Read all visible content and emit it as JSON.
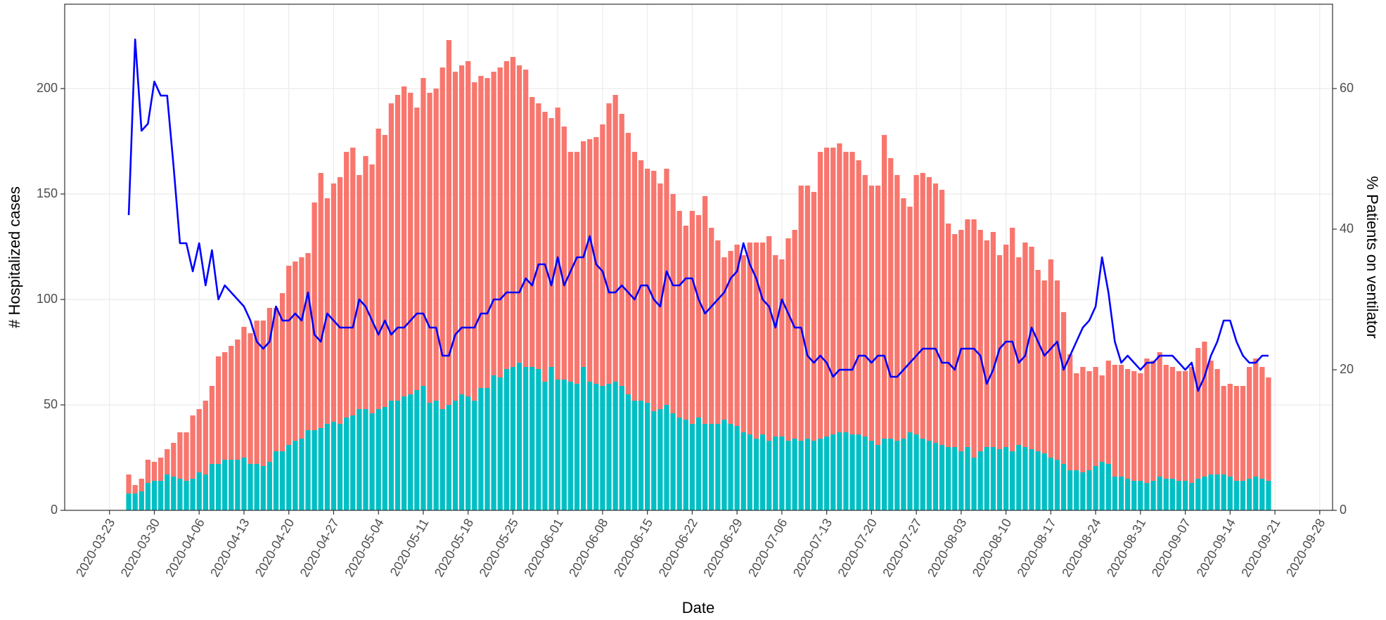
{
  "chart_data": {
    "type": "bar",
    "xlabel": "Date",
    "ylabel": "# Hospitalized cases",
    "y2label": "% Patients on ventilator",
    "x": [
      "2020-03-26",
      "2020-03-27",
      "2020-03-28",
      "2020-03-29",
      "2020-03-30",
      "2020-03-31",
      "2020-04-01",
      "2020-04-02",
      "2020-04-03",
      "2020-04-04",
      "2020-04-05",
      "2020-04-06",
      "2020-04-07",
      "2020-04-08",
      "2020-04-09",
      "2020-04-10",
      "2020-04-11",
      "2020-04-12",
      "2020-04-13",
      "2020-04-14",
      "2020-04-15",
      "2020-04-16",
      "2020-04-17",
      "2020-04-18",
      "2020-04-19",
      "2020-04-20",
      "2020-04-21",
      "2020-04-22",
      "2020-04-23",
      "2020-04-24",
      "2020-04-25",
      "2020-04-26",
      "2020-04-27",
      "2020-04-28",
      "2020-04-29",
      "2020-04-30",
      "2020-05-01",
      "2020-05-02",
      "2020-05-03",
      "2020-05-04",
      "2020-05-05",
      "2020-05-06",
      "2020-05-07",
      "2020-05-08",
      "2020-05-09",
      "2020-05-10",
      "2020-05-11",
      "2020-05-12",
      "2020-05-13",
      "2020-05-14",
      "2020-05-15",
      "2020-05-16",
      "2020-05-17",
      "2020-05-18",
      "2020-05-19",
      "2020-05-20",
      "2020-05-21",
      "2020-05-22",
      "2020-05-23",
      "2020-05-24",
      "2020-05-25",
      "2020-05-26",
      "2020-05-27",
      "2020-05-28",
      "2020-05-29",
      "2020-05-30",
      "2020-05-31",
      "2020-06-01",
      "2020-06-02",
      "2020-06-03",
      "2020-06-04",
      "2020-06-05",
      "2020-06-06",
      "2020-06-07",
      "2020-06-08",
      "2020-06-09",
      "2020-06-10",
      "2020-06-11",
      "2020-06-12",
      "2020-06-13",
      "2020-06-14",
      "2020-06-15",
      "2020-06-16",
      "2020-06-17",
      "2020-06-18",
      "2020-06-19",
      "2020-06-20",
      "2020-06-21",
      "2020-06-22",
      "2020-06-23",
      "2020-06-24",
      "2020-06-25",
      "2020-06-26",
      "2020-06-27",
      "2020-06-28",
      "2020-06-29",
      "2020-06-30",
      "2020-07-01",
      "2020-07-02",
      "2020-07-03",
      "2020-07-04",
      "2020-07-05",
      "2020-07-06",
      "2020-07-07",
      "2020-07-08",
      "2020-07-09",
      "2020-07-10",
      "2020-07-11",
      "2020-07-12",
      "2020-07-13",
      "2020-07-14",
      "2020-07-15",
      "2020-07-16",
      "2020-07-17",
      "2020-07-18",
      "2020-07-19",
      "2020-07-20",
      "2020-07-21",
      "2020-07-22",
      "2020-07-23",
      "2020-07-24",
      "2020-07-25",
      "2020-07-26",
      "2020-07-27",
      "2020-07-28",
      "2020-07-29",
      "2020-07-30",
      "2020-07-31",
      "2020-08-01",
      "2020-08-02",
      "2020-08-03",
      "2020-08-04",
      "2020-08-05",
      "2020-08-06",
      "2020-08-07",
      "2020-08-08",
      "2020-08-09",
      "2020-08-10",
      "2020-08-11",
      "2020-08-12",
      "2020-08-13",
      "2020-08-14",
      "2020-08-15",
      "2020-08-16",
      "2020-08-17",
      "2020-08-18",
      "2020-08-19",
      "2020-08-20",
      "2020-08-21",
      "2020-08-22",
      "2020-08-23",
      "2020-08-24",
      "2020-08-25",
      "2020-08-26",
      "2020-08-27",
      "2020-08-28",
      "2020-08-29",
      "2020-08-30",
      "2020-08-31",
      "2020-09-01",
      "2020-09-02",
      "2020-09-03",
      "2020-09-04",
      "2020-09-05",
      "2020-09-06",
      "2020-09-07",
      "2020-09-08",
      "2020-09-09",
      "2020-09-10",
      "2020-09-11",
      "2020-09-12",
      "2020-09-13",
      "2020-09-14",
      "2020-09-15",
      "2020-09-16",
      "2020-09-17",
      "2020-09-18",
      "2020-09-19",
      "2020-09-20"
    ],
    "series": [
      {
        "type": "bar",
        "color": "#00BFC4",
        "values": [
          8,
          8,
          9,
          13,
          14,
          14,
          17,
          16,
          15,
          14,
          15,
          18,
          17,
          22,
          22,
          24,
          24,
          24,
          25,
          22,
          22,
          21,
          23,
          28,
          28,
          31,
          33,
          34,
          38,
          38,
          39,
          41,
          42,
          41,
          44,
          45,
          48,
          48,
          46,
          48,
          49,
          52,
          52,
          54,
          55,
          57,
          59,
          51,
          52,
          48,
          50,
          52,
          55,
          54,
          52,
          58,
          58,
          64,
          63,
          67,
          68,
          70,
          68,
          68,
          67,
          61,
          68,
          62,
          62,
          61,
          60,
          68,
          61,
          60,
          59,
          60,
          61,
          59,
          55,
          52,
          52,
          51,
          47,
          48,
          50,
          46,
          44,
          43,
          41,
          44,
          41,
          41,
          41,
          43,
          41,
          40,
          37,
          36,
          34,
          36,
          33,
          35,
          35,
          33,
          34,
          33,
          34,
          33,
          34,
          35,
          36,
          37,
          37,
          36,
          36,
          35,
          33,
          31,
          34,
          34,
          33,
          34,
          37,
          36,
          34,
          33,
          32,
          31,
          30,
          30,
          28,
          30,
          25,
          28,
          30,
          30,
          29,
          30,
          28,
          31,
          30,
          29,
          28,
          27,
          25,
          24,
          22,
          19,
          19,
          18,
          19,
          21,
          23,
          22,
          16,
          16,
          15,
          14,
          14,
          13,
          14,
          16,
          15,
          15,
          14,
          14,
          13,
          15,
          16,
          17,
          17,
          17,
          16,
          14,
          14,
          15,
          16,
          15,
          14
        ]
      },
      {
        "type": "bar",
        "color": "#F8766D",
        "values": [
          9,
          4,
          6,
          11,
          9,
          11,
          12,
          16,
          22,
          23,
          30,
          30,
          35,
          37,
          51,
          51,
          54,
          57,
          62,
          62,
          68,
          69,
          73,
          68,
          75,
          85,
          85,
          86,
          84,
          108,
          121,
          107,
          113,
          117,
          126,
          127,
          111,
          120,
          118,
          133,
          129,
          141,
          145,
          147,
          143,
          134,
          146,
          147,
          148,
          162,
          173,
          156,
          156,
          159,
          151,
          148,
          147,
          144,
          147,
          146,
          147,
          141,
          141,
          128,
          126,
          128,
          118,
          129,
          120,
          109,
          110,
          107,
          115,
          117,
          124,
          133,
          136,
          129,
          124,
          118,
          114,
          111,
          114,
          107,
          112,
          104,
          98,
          92,
          101,
          96,
          108,
          93,
          87,
          77,
          82,
          86,
          84,
          91,
          93,
          91,
          97,
          86,
          84,
          96,
          99,
          121,
          120,
          118,
          136,
          137,
          136,
          137,
          133,
          134,
          130,
          124,
          121,
          123,
          144,
          133,
          126,
          114,
          107,
          123,
          126,
          125,
          123,
          121,
          106,
          101,
          105,
          108,
          113,
          105,
          98,
          102,
          92,
          96,
          106,
          89,
          97,
          96,
          86,
          82,
          94,
          85,
          72,
          55,
          46,
          50,
          47,
          47,
          41,
          49,
          53,
          53,
          52,
          52,
          51,
          59,
          57,
          59,
          54,
          53,
          52,
          52,
          55,
          62,
          64,
          54,
          50,
          42,
          44,
          45,
          45,
          53,
          56,
          53,
          49
        ]
      },
      {
        "type": "line",
        "axis": "y2",
        "color": "#0000FF",
        "values": [
          42,
          67,
          54,
          55,
          61,
          59,
          59,
          49,
          38,
          38,
          34,
          38,
          32,
          37,
          30,
          32,
          31,
          30,
          29,
          27,
          24,
          23,
          24,
          29,
          27,
          27,
          28,
          27,
          31,
          25,
          24,
          28,
          27,
          26,
          26,
          26,
          30,
          29,
          27,
          25,
          27,
          25,
          26,
          26,
          27,
          28,
          28,
          26,
          26,
          22,
          22,
          25,
          26,
          26,
          26,
          28,
          28,
          30,
          30,
          31,
          31,
          31,
          33,
          32,
          35,
          35,
          32,
          36,
          32,
          34,
          36,
          36,
          39,
          35,
          34,
          31,
          31,
          32,
          31,
          30,
          32,
          32,
          30,
          29,
          34,
          32,
          32,
          33,
          33,
          30,
          28,
          29,
          30,
          31,
          33,
          34,
          38,
          35,
          33,
          30,
          29,
          26,
          30,
          28,
          26,
          26,
          22,
          21,
          22,
          21,
          19,
          20,
          20,
          20,
          22,
          22,
          21,
          22,
          22,
          19,
          19,
          20,
          21,
          22,
          23,
          23,
          23,
          21,
          21,
          20,
          23,
          23,
          23,
          22,
          18,
          20,
          23,
          24,
          24,
          21,
          22,
          26,
          24,
          22,
          23,
          24,
          20,
          22,
          24,
          26,
          27,
          29,
          36,
          31,
          24,
          21,
          22,
          21,
          20,
          21,
          21,
          22,
          22,
          22,
          21,
          20,
          21,
          17,
          19,
          22,
          24,
          27,
          27,
          24,
          22,
          21,
          21,
          22,
          22
        ]
      }
    ],
    "xlim": [
      "2020-03-16",
      "2020-09-30"
    ],
    "xticks": [
      "2020-03-23",
      "2020-03-30",
      "2020-04-06",
      "2020-04-13",
      "2020-04-20",
      "2020-04-27",
      "2020-05-04",
      "2020-05-11",
      "2020-05-18",
      "2020-05-25",
      "2020-06-01",
      "2020-06-08",
      "2020-06-15",
      "2020-06-22",
      "2020-06-29",
      "2020-07-06",
      "2020-07-13",
      "2020-07-20",
      "2020-07-27",
      "2020-08-03",
      "2020-08-10",
      "2020-08-17",
      "2020-08-24",
      "2020-08-31",
      "2020-09-07",
      "2020-09-14",
      "2020-09-21",
      "2020-09-28"
    ],
    "ylim": [
      0,
      240
    ],
    "yticks": [
      0,
      50,
      100,
      150,
      200
    ],
    "y2lim": [
      0,
      72
    ],
    "y2ticks": [
      0,
      20,
      40,
      60
    ],
    "grid": true
  }
}
